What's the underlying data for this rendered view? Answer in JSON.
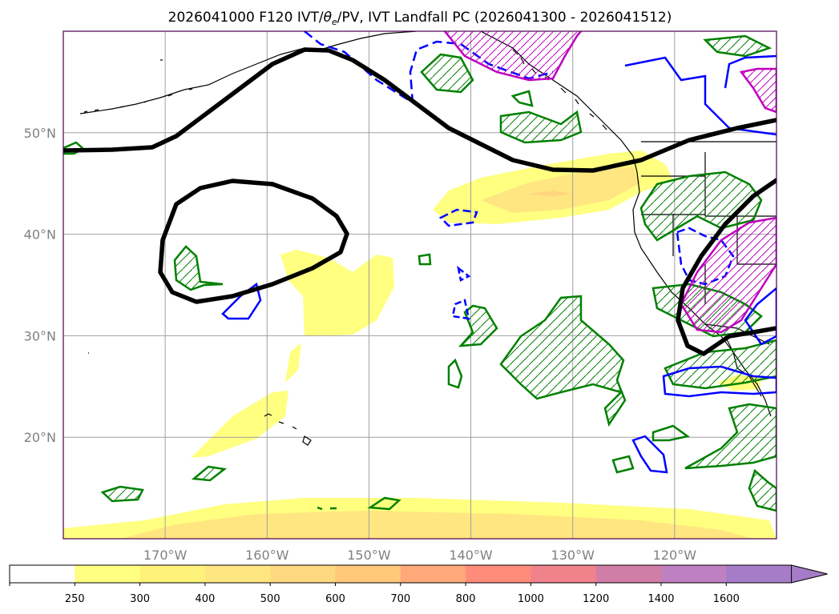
{
  "title_prefix": "2026041000 F120 IVT/",
  "title_theta": "θ",
  "title_theta_sub": "e",
  "title_suffix": "/PV, IVT Landfall PC (2026041300 - 2026041512)",
  "map": {
    "lon_range": [
      -180,
      -110
    ],
    "lat_range": [
      10,
      60
    ],
    "lon_ticks": [
      -170,
      -160,
      -150,
      -140,
      -130,
      -120
    ],
    "lat_ticks": [
      20,
      30,
      40,
      50
    ],
    "lon_labels": [
      "170°W",
      "160°W",
      "150°W",
      "140°W",
      "130°W",
      "120°W"
    ],
    "lat_labels": [
      "20°N",
      "30°N",
      "40°N",
      "50°N"
    ],
    "gridlines": true
  },
  "colors": {
    "pv_contour": "#000000",
    "green_contour": "#008000",
    "blue_contour": "#0000ff",
    "magenta_contour": "#bf00bf",
    "coast": "#000000",
    "ivt_fill": [
      "#ffff80",
      "#ffe680",
      "#ffd580"
    ]
  },
  "colorbar": {
    "levels": [
      "250",
      "300",
      "400",
      "500",
      "600",
      "700",
      "800",
      "1000",
      "1200",
      "1400",
      "1600"
    ],
    "colors": [
      "#ffffff",
      "#ffff80",
      "#fff27a",
      "#ffe680",
      "#ffd980",
      "#ffc87a",
      "#ffa87a",
      "#ff8c7a",
      "#f0828c",
      "#d07ea6",
      "#be80c0",
      "#a67cc8"
    ],
    "extend": "max"
  }
}
